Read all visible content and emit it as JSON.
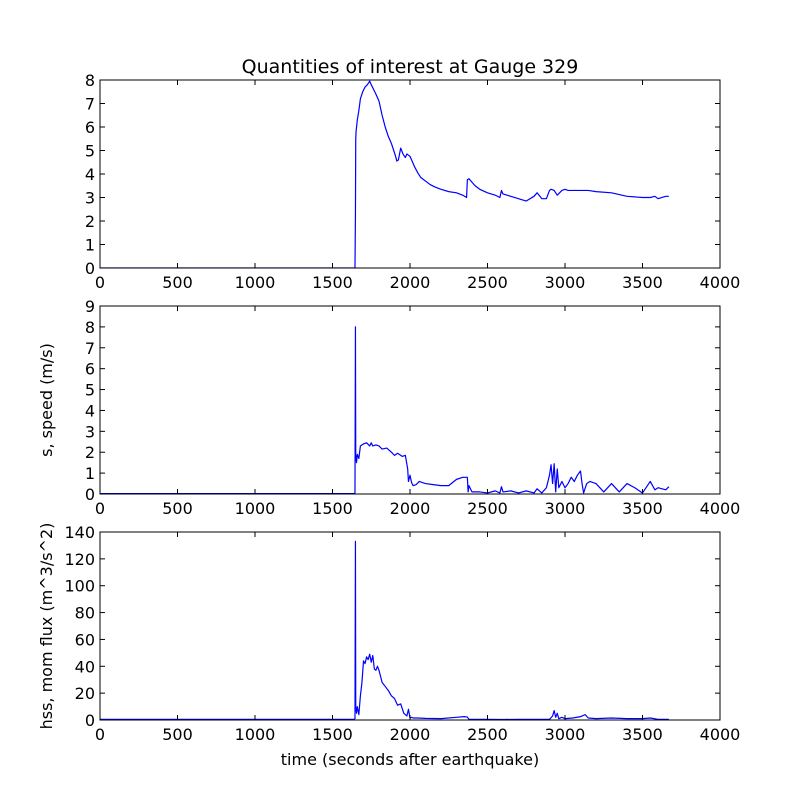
{
  "chart_data": [
    {
      "type": "line",
      "title": "Quantities of interest at Gauge 329",
      "xlabel": "",
      "ylabel": "",
      "xlim": [
        0,
        4000
      ],
      "ylim": [
        0,
        8
      ],
      "xticks": [
        0,
        500,
        1000,
        1500,
        2000,
        2500,
        3000,
        3500,
        4000
      ],
      "yticks": [
        0,
        1,
        2,
        3,
        4,
        5,
        6,
        7,
        8
      ],
      "grid": false,
      "line_color": "#0000ff",
      "series": [
        {
          "x": [
            0,
            1645,
            1648,
            1650,
            1652,
            1660,
            1670,
            1680,
            1695,
            1710,
            1725,
            1740,
            1750,
            1765,
            1780,
            1800,
            1820,
            1840,
            1860,
            1880,
            1895,
            1905,
            1915,
            1925,
            1940,
            1955,
            1970,
            1980,
            1990,
            2000,
            2010,
            2030,
            2050,
            2070,
            2100,
            2130,
            2160,
            2200,
            2250,
            2300,
            2340,
            2365,
            2370,
            2380,
            2400,
            2420,
            2450,
            2500,
            2550,
            2580,
            2590,
            2600,
            2650,
            2700,
            2750,
            2800,
            2820,
            2850,
            2880,
            2900,
            2910,
            2930,
            2950,
            2980,
            3000,
            3020,
            3050,
            3100,
            3150,
            3200,
            3300,
            3400,
            3500,
            3550,
            3580,
            3600,
            3650,
            3670
          ],
          "y": [
            0,
            0,
            2.3,
            5.5,
            5.8,
            6.3,
            6.7,
            7.2,
            7.5,
            7.7,
            7.8,
            7.95,
            7.8,
            7.6,
            7.4,
            7.1,
            6.5,
            6.0,
            5.6,
            5.3,
            5.0,
            4.8,
            4.55,
            4.6,
            5.1,
            4.85,
            4.7,
            4.85,
            4.8,
            4.75,
            4.6,
            4.3,
            4.05,
            3.85,
            3.7,
            3.55,
            3.45,
            3.35,
            3.25,
            3.2,
            3.1,
            3.0,
            3.75,
            3.8,
            3.65,
            3.5,
            3.35,
            3.2,
            3.1,
            3.0,
            3.3,
            3.15,
            3.05,
            2.95,
            2.85,
            3.05,
            3.2,
            2.95,
            2.95,
            3.3,
            3.35,
            3.3,
            3.1,
            3.3,
            3.35,
            3.3,
            3.3,
            3.3,
            3.3,
            3.25,
            3.2,
            3.05,
            3.0,
            3.0,
            3.05,
            2.95,
            3.05,
            3.05
          ]
        }
      ]
    },
    {
      "type": "line",
      "title": "",
      "xlabel": "",
      "ylabel": "s, speed (m/s)",
      "xlim": [
        0,
        4000
      ],
      "ylim": [
        0,
        9
      ],
      "xticks": [
        0,
        500,
        1000,
        1500,
        2000,
        2500,
        3000,
        3500,
        4000
      ],
      "yticks": [
        0,
        1,
        2,
        3,
        4,
        5,
        6,
        7,
        8,
        9
      ],
      "grid": false,
      "line_color": "#0000ff",
      "series": [
        {
          "x": [
            0,
            1640,
            1645,
            1648,
            1650,
            1655,
            1660,
            1670,
            1680,
            1700,
            1720,
            1740,
            1750,
            1760,
            1780,
            1800,
            1820,
            1850,
            1880,
            1900,
            1920,
            1950,
            1970,
            1985,
            1990,
            2000,
            2010,
            2020,
            2040,
            2060,
            2080,
            2100,
            2150,
            2200,
            2250,
            2300,
            2340,
            2370,
            2375,
            2380,
            2400,
            2450,
            2500,
            2550,
            2580,
            2590,
            2600,
            2650,
            2700,
            2750,
            2800,
            2820,
            2850,
            2880,
            2900,
            2910,
            2920,
            2930,
            2940,
            2950,
            2960,
            2980,
            3000,
            3020,
            3040,
            3060,
            3080,
            3100,
            3110,
            3120,
            3140,
            3160,
            3200,
            3250,
            3300,
            3350,
            3400,
            3450,
            3500,
            3550,
            3580,
            3600,
            3650,
            3670
          ],
          "y": [
            0.02,
            0.02,
            0.05,
            8.0,
            1.9,
            1.5,
            1.9,
            1.7,
            2.3,
            2.4,
            2.45,
            2.3,
            2.45,
            2.3,
            2.35,
            2.3,
            2.15,
            2.2,
            2.0,
            1.85,
            1.95,
            1.8,
            1.85,
            1.2,
            0.6,
            0.9,
            0.55,
            0.4,
            0.45,
            0.6,
            0.55,
            0.5,
            0.45,
            0.4,
            0.4,
            0.7,
            0.8,
            0.8,
            0.1,
            0.4,
            0.1,
            0.1,
            0.05,
            0.15,
            0.05,
            0.35,
            0.1,
            0.15,
            0.05,
            0.15,
            0.05,
            0.25,
            0.05,
            0.3,
            0.9,
            1.4,
            0.5,
            1.45,
            0.1,
            1.2,
            0.3,
            0.6,
            0.3,
            0.5,
            0.8,
            0.6,
            0.9,
            1.1,
            0.5,
            0.05,
            0.5,
            0.6,
            0.5,
            0.1,
            0.5,
            0.1,
            0.5,
            0.3,
            0.05,
            0.6,
            0.2,
            0.3,
            0.2,
            0.35
          ]
        }
      ]
    },
    {
      "type": "line",
      "title": "",
      "xlabel": "time (seconds after earthquake)",
      "ylabel": "hss, mom flux (m^3/s^2)",
      "xlim": [
        0,
        4000
      ],
      "ylim": [
        0,
        140
      ],
      "xticks": [
        0,
        500,
        1000,
        1500,
        2000,
        2500,
        3000,
        3500,
        4000
      ],
      "yticks": [
        0,
        20,
        40,
        60,
        80,
        100,
        120,
        140
      ],
      "grid": false,
      "line_color": "#0000ff",
      "series": [
        {
          "x": [
            0,
            1640,
            1645,
            1648,
            1650,
            1655,
            1660,
            1670,
            1680,
            1690,
            1700,
            1710,
            1720,
            1730,
            1740,
            1750,
            1760,
            1770,
            1780,
            1790,
            1800,
            1820,
            1840,
            1860,
            1880,
            1900,
            1920,
            1940,
            1960,
            1980,
            1990,
            2000,
            2010,
            2020,
            2050,
            2100,
            2200,
            2300,
            2350,
            2370,
            2380,
            2400,
            2500,
            2600,
            2700,
            2800,
            2900,
            2920,
            2930,
            2940,
            2950,
            2960,
            2980,
            3000,
            3050,
            3100,
            3130,
            3150,
            3200,
            3300,
            3400,
            3500,
            3550,
            3600,
            3670
          ],
          "y": [
            0.5,
            0.5,
            1.0,
            133,
            10,
            5,
            10,
            4,
            18,
            28,
            44,
            42,
            47,
            45,
            49,
            43,
            48,
            38,
            37,
            40,
            37,
            28,
            25,
            22,
            18,
            16,
            11,
            12,
            5,
            3,
            8,
            1.5,
            2,
            1.5,
            1.5,
            1.2,
            1.0,
            2.0,
            2.5,
            2.2,
            0.5,
            0.5,
            0.5,
            0.4,
            0.5,
            0.5,
            0.5,
            3,
            7,
            2,
            5,
            1,
            2,
            1,
            1.5,
            2.5,
            4,
            1.5,
            1,
            1.5,
            1,
            1,
            1.5,
            0.5,
            0.5
          ]
        }
      ]
    }
  ]
}
